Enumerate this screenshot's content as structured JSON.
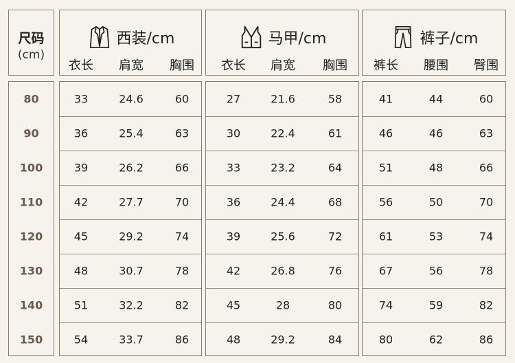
{
  "size_column": {
    "title": "尺码",
    "unit": "(cm)",
    "sizes": [
      "80",
      "90",
      "100",
      "110",
      "120",
      "130",
      "140",
      "150"
    ]
  },
  "groups": [
    {
      "title": "西装/cm",
      "icon": "suit-jacket-icon",
      "columns": [
        "衣长",
        "肩宽",
        "胸围"
      ],
      "rows": [
        [
          "33",
          "24.6",
          "60"
        ],
        [
          "36",
          "25.4",
          "63"
        ],
        [
          "39",
          "26.2",
          "66"
        ],
        [
          "42",
          "27.7",
          "70"
        ],
        [
          "45",
          "29.2",
          "74"
        ],
        [
          "48",
          "30.7",
          "78"
        ],
        [
          "51",
          "32.2",
          "82"
        ],
        [
          "54",
          "33.7",
          "86"
        ]
      ]
    },
    {
      "title": "马甲/cm",
      "icon": "vest-icon",
      "columns": [
        "衣长",
        "肩宽",
        "胸围"
      ],
      "rows": [
        [
          "27",
          "21.6",
          "58"
        ],
        [
          "30",
          "22.4",
          "61"
        ],
        [
          "33",
          "23.2",
          "64"
        ],
        [
          "36",
          "24.4",
          "68"
        ],
        [
          "39",
          "25.6",
          "72"
        ],
        [
          "42",
          "26.8",
          "76"
        ],
        [
          "45",
          "28",
          "80"
        ],
        [
          "48",
          "29.2",
          "84"
        ]
      ]
    },
    {
      "title": "裤子/cm",
      "icon": "pants-icon",
      "columns": [
        "裤长",
        "腰围",
        "臀围"
      ],
      "rows": [
        [
          "41",
          "44",
          "60"
        ],
        [
          "46",
          "46",
          "63"
        ],
        [
          "51",
          "48",
          "66"
        ],
        [
          "56",
          "50",
          "70"
        ],
        [
          "61",
          "53",
          "74"
        ],
        [
          "67",
          "56",
          "78"
        ],
        [
          "74",
          "59",
          "82"
        ],
        [
          "80",
          "62",
          "86"
        ]
      ]
    }
  ],
  "colors": {
    "border": "#8c7c6c",
    "background": "#f6f3ec",
    "size_label": "#6a5b4c"
  }
}
